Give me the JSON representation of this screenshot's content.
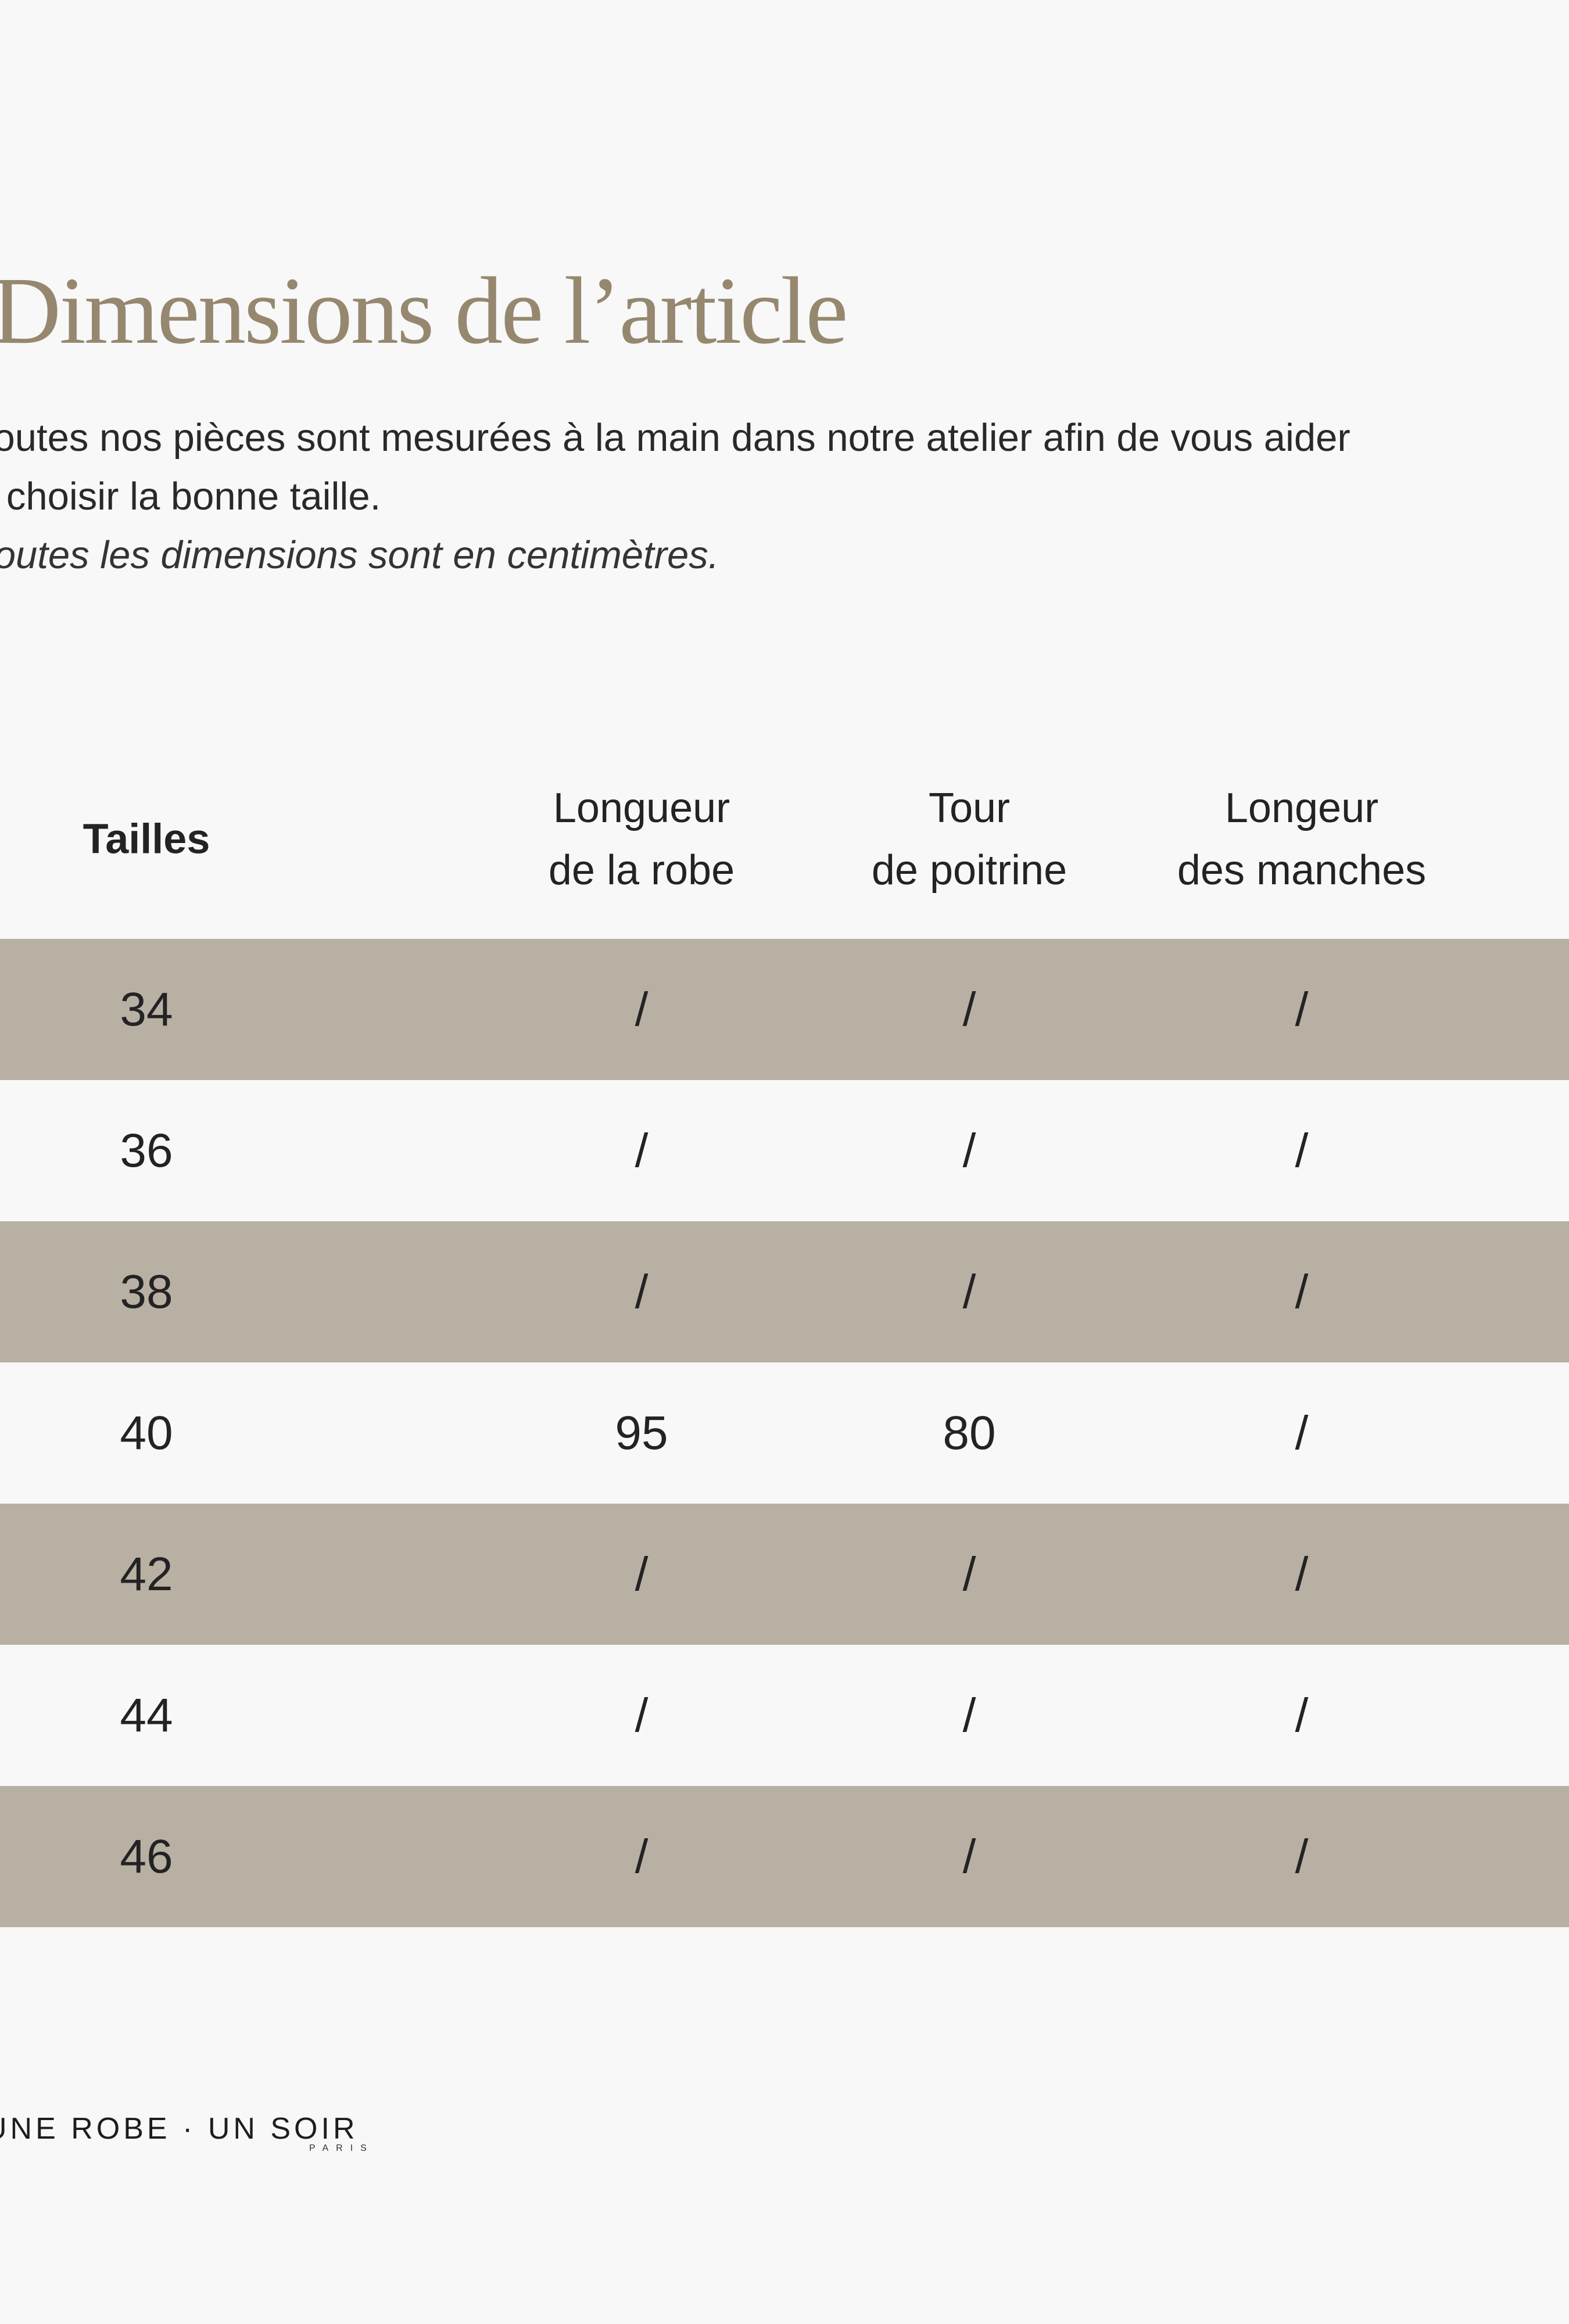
{
  "title": {
    "text": "Dimensions de l’article"
  },
  "intro": {
    "line1": "Toutes nos pièces sont mesurées à la main dans notre atelier afin de vous aider",
    "line2": "à choisir la bonne taille.",
    "note": "Toutes les dimensions sont en centimètres."
  },
  "table": {
    "columns": [
      {
        "id": "tailles",
        "lines": [
          "Tailles"
        ]
      },
      {
        "id": "longueur-robe",
        "lines": [
          "Longueur",
          "de la robe"
        ]
      },
      {
        "id": "tour-poitrine",
        "lines": [
          "Tour",
          "de poitrine"
        ]
      },
      {
        "id": "longeur-manches",
        "lines": [
          "Longeur",
          "des manches"
        ]
      }
    ],
    "rows": [
      {
        "size": "34",
        "values": [
          "/",
          "/",
          "/"
        ]
      },
      {
        "size": "36",
        "values": [
          "/",
          "/",
          "/"
        ]
      },
      {
        "size": "38",
        "values": [
          "/",
          "/",
          "/"
        ]
      },
      {
        "size": "40",
        "values": [
          "95",
          "80",
          "/"
        ]
      },
      {
        "size": "42",
        "values": [
          "/",
          "/",
          "/"
        ]
      },
      {
        "size": "44",
        "values": [
          "/",
          "/",
          "/"
        ]
      },
      {
        "size": "46",
        "values": [
          "/",
          "/",
          "/"
        ]
      }
    ]
  },
  "footer": {
    "brand": "UNE ROBE · UN SOIR",
    "sub": "PARIS"
  },
  "colors": {
    "background": "#f8f8f9",
    "row_beige": "#b8b0a2",
    "title_taupe": "#95886f",
    "text_dark": "#29292b",
    "logo_dark": "#1d1d1f"
  }
}
